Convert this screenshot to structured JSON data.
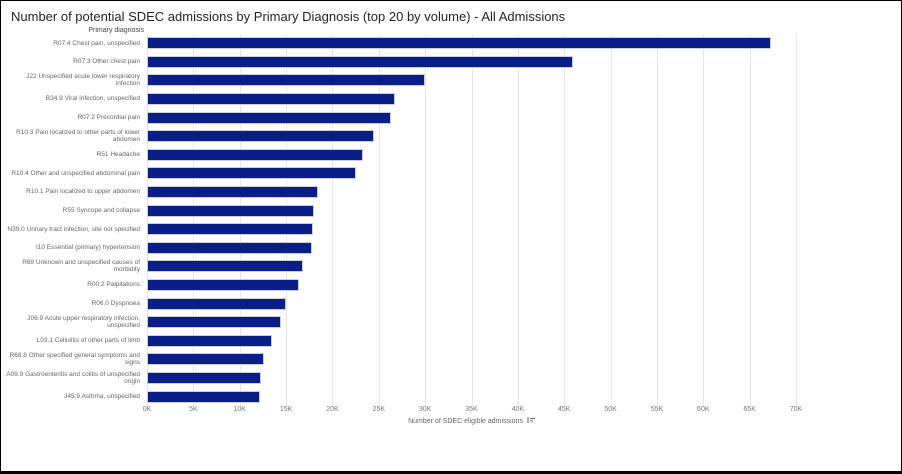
{
  "title": "Number of potential SDEC admissions by Primary Diagnosis (top 20 by volume) - All Admissions",
  "icons": {
    "axis_options": "sort-icon"
  },
  "chart_data": {
    "type": "bar",
    "orientation": "horizontal",
    "title": "Number of potential SDEC admissions by Primary Diagnosis (top 20 by volume) - All Admissions",
    "xlabel": "Number of SDEC eligible admissions",
    "ylabel": "Primary diagnosis",
    "xlim": [
      0,
      70000
    ],
    "x_tick_labels": [
      "0K",
      "5K",
      "10K",
      "15K",
      "20K",
      "25K",
      "30K",
      "35K",
      "40K",
      "45K",
      "50K",
      "55K",
      "60K",
      "65K",
      "70K"
    ],
    "x_tick_values": [
      0,
      5000,
      10000,
      15000,
      20000,
      25000,
      30000,
      35000,
      40000,
      45000,
      50000,
      55000,
      60000,
      65000,
      70000
    ],
    "grid": true,
    "legend": "none",
    "bar_color": "#0A1E87",
    "categories": [
      "R07.4 Chest pain, unspecified",
      "R07.3 Other chest pain",
      "J22 Unspecified acute lower respiratory infection",
      "B34.9 Viral infection, unspecified",
      "R07.2 Precordial pain",
      "R10.3 Pain localized to other parts of lower abdomen",
      "R51 Headache",
      "R10.4 Other and unspecified abdominal pain",
      "R10.1 Pain localized to upper abdomen",
      "R55 Syncope and collapse",
      "N39.0 Urinary tract infection, site not specified",
      "I10 Essential (primary) hypertension",
      "R69 Unknown and unspecified causes of morbidity",
      "R00.2 Palpitations",
      "R06.0 Dyspnoea",
      "J06.9 Acute upper respiratory infection, unspecified",
      "L03.1 Cellulitis of other parts of limb",
      "R68.8 Other specified general symptoms and signs",
      "A09.9 Gastroenteritis and colitis of unspecified origin",
      "J45.9 Asthma, unspecified"
    ],
    "values": [
      67300,
      46000,
      30000,
      26700,
      26300,
      24500,
      23300,
      22500,
      18400,
      18000,
      17900,
      17800,
      16800,
      16400,
      15000,
      14500,
      13500,
      12600,
      12300,
      12200
    ]
  }
}
